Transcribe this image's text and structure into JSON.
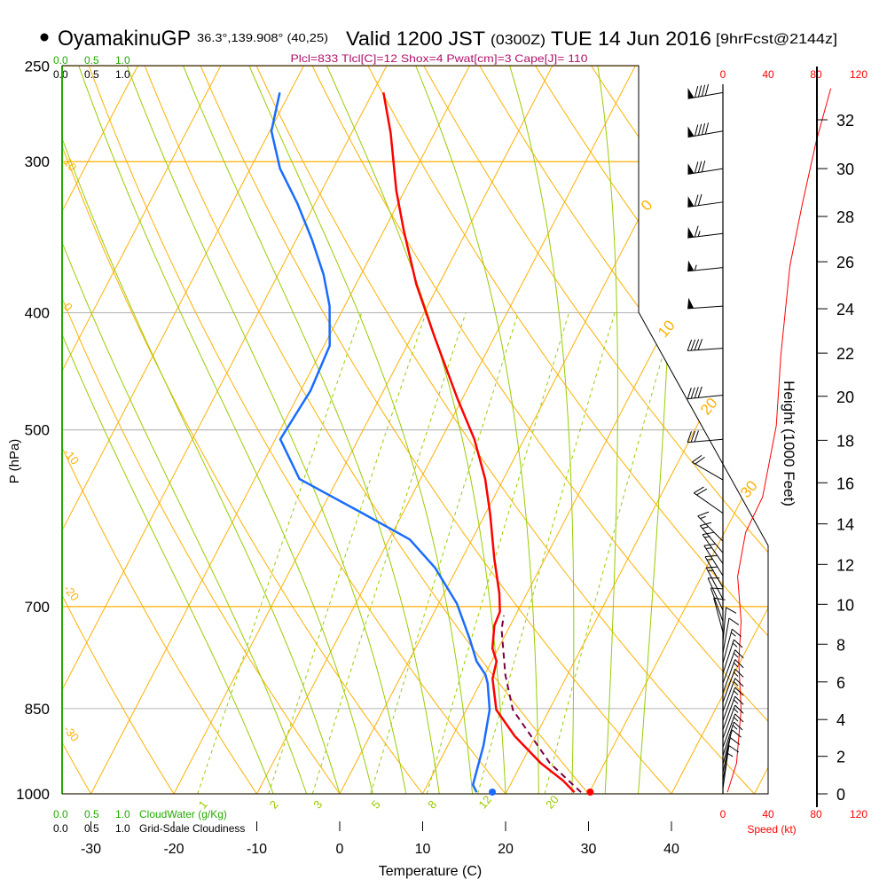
{
  "header": {
    "station": "OyamakinuGP",
    "coords": "36.3°,139.908° (40,25)",
    "valid": "Valid 1200 JST",
    "utc": "(0300Z)",
    "date": "TUE 14 Jun 2016",
    "forecast": "[9hrFcst@2144z]",
    "indices": "Plcl=833 Tlcl[C]=12 Shox=4 Pwat[cm]=3 Cape[J]= 110"
  },
  "cloud_axis": {
    "ticks": [
      "0.0",
      "0.5",
      "1.0"
    ],
    "cloudwater_label": "CloudWater (g/Kg)",
    "cloudiness_label": "Grid-Scale Cloudiness"
  },
  "speed_axis": {
    "ticks": [
      "0",
      "40",
      "80",
      "120"
    ],
    "label": "Speed (kt)"
  },
  "colors": {
    "temperature": "#ff0000",
    "dewpoint": "#1a6cff",
    "parcel": "#7a0040",
    "isotherm": "#ffb000",
    "moist_adiabat": "#99cc00",
    "mixing_ratio": "#99cc00",
    "indices": "#b0106a"
  },
  "chart_data": {
    "type": "line",
    "title": "Skew-T sounding",
    "xlabel": "Temperature (C)",
    "ylabel": "P (hPa)",
    "y2label": "Height (1000 Feet)",
    "x_ticks": [
      -30,
      -20,
      -10,
      0,
      10,
      20,
      30,
      40
    ],
    "pressure_ticks": [
      250,
      300,
      400,
      500,
      700,
      850,
      1000
    ],
    "height_ticks": [
      {
        "kft": 0,
        "p": 1000
      },
      {
        "kft": 2,
        "p": 931
      },
      {
        "kft": 4,
        "p": 868
      },
      {
        "kft": 6,
        "p": 808
      },
      {
        "kft": 8,
        "p": 752
      },
      {
        "kft": 10,
        "p": 697
      },
      {
        "kft": 12,
        "p": 646
      },
      {
        "kft": 14,
        "p": 598
      },
      {
        "kft": 16,
        "p": 553
      },
      {
        "kft": 18,
        "p": 510
      },
      {
        "kft": 20,
        "p": 469
      },
      {
        "kft": 22,
        "p": 432
      },
      {
        "kft": 24,
        "p": 397
      },
      {
        "kft": 26,
        "p": 363
      },
      {
        "kft": 28,
        "p": 333
      },
      {
        "kft": 30,
        "p": 304
      },
      {
        "kft": 32,
        "p": 277
      }
    ],
    "isotherm_labels": [
      {
        "t": 0,
        "p": 330
      },
      {
        "t": 10,
        "p": 420
      },
      {
        "t": 20,
        "p": 487
      },
      {
        "t": 30,
        "p": 570
      }
    ],
    "dry_adiabat_labels": [
      {
        "text": "10",
        "p": 299
      },
      {
        "text": "0",
        "p": 394
      },
      {
        "text": "-10",
        "p": 520
      },
      {
        "text": "-20",
        "p": 674
      },
      {
        "text": "-30",
        "p": 881
      }
    ],
    "mixing_ratio_labels": [
      "1",
      "2",
      "3",
      "5",
      "8",
      "12",
      "20"
    ],
    "temperature": [
      {
        "p": 263,
        "t": -38.7
      },
      {
        "p": 284,
        "t": -35.3
      },
      {
        "p": 317,
        "t": -31.0
      },
      {
        "p": 342,
        "t": -27.6
      },
      {
        "p": 379,
        "t": -22.7
      },
      {
        "p": 419,
        "t": -17.2
      },
      {
        "p": 471,
        "t": -10.6
      },
      {
        "p": 509,
        "t": -6.0
      },
      {
        "p": 549,
        "t": -2.2
      },
      {
        "p": 587,
        "t": 0.6
      },
      {
        "p": 639,
        "t": 3.9
      },
      {
        "p": 683,
        "t": 6.7
      },
      {
        "p": 707,
        "t": 7.9
      },
      {
        "p": 726,
        "t": 8.1
      },
      {
        "p": 758,
        "t": 9.3
      },
      {
        "p": 777,
        "t": 10.6
      },
      {
        "p": 803,
        "t": 11.2
      },
      {
        "p": 852,
        "t": 13.6
      },
      {
        "p": 896,
        "t": 17.5
      },
      {
        "p": 943,
        "t": 22.3
      },
      {
        "p": 975,
        "t": 26.1
      },
      {
        "p": 997,
        "t": 28.2
      }
    ],
    "dewpoint": [
      {
        "p": 263,
        "t": -51.2
      },
      {
        "p": 283,
        "t": -49.8
      },
      {
        "p": 304,
        "t": -46.4
      },
      {
        "p": 325,
        "t": -42.1
      },
      {
        "p": 348,
        "t": -38.1
      },
      {
        "p": 372,
        "t": -34.5
      },
      {
        "p": 395,
        "t": -31.8
      },
      {
        "p": 426,
        "t": -29.3
      },
      {
        "p": 464,
        "t": -28.8
      },
      {
        "p": 509,
        "t": -29.4
      },
      {
        "p": 549,
        "t": -24.6
      },
      {
        "p": 587,
        "t": -14.6
      },
      {
        "p": 616,
        "t": -7.5
      },
      {
        "p": 650,
        "t": -2.7
      },
      {
        "p": 696,
        "t": 2.2
      },
      {
        "p": 745,
        "t": 6.0
      },
      {
        "p": 777,
        "t": 8.2
      },
      {
        "p": 797,
        "t": 10.1
      },
      {
        "p": 810,
        "t": 10.9
      },
      {
        "p": 852,
        "t": 12.8
      },
      {
        "p": 912,
        "t": 14.3
      },
      {
        "p": 959,
        "t": 15.1
      },
      {
        "p": 983,
        "t": 15.5
      },
      {
        "p": 997,
        "t": 16.4
      }
    ],
    "parcel": [
      {
        "p": 997,
        "t": 29.0
      },
      {
        "p": 943,
        "t": 23.4
      },
      {
        "p": 852,
        "t": 15.6
      },
      {
        "p": 797,
        "t": 12.5
      },
      {
        "p": 731,
        "t": 9.2
      },
      {
        "p": 712,
        "t": 8.6
      }
    ],
    "surface": {
      "p": 1000,
      "t": 30.2,
      "td": 18.4
    },
    "wind_speed": [
      {
        "p": 997,
        "spd": 4
      },
      {
        "p": 943,
        "spd": 12
      },
      {
        "p": 852,
        "spd": 16
      },
      {
        "p": 777,
        "spd": 14
      },
      {
        "p": 720,
        "spd": 16
      },
      {
        "p": 661,
        "spd": 13
      },
      {
        "p": 608,
        "spd": 20
      },
      {
        "p": 568,
        "spd": 35
      },
      {
        "p": 496,
        "spd": 47
      },
      {
        "p": 434,
        "spd": 51
      },
      {
        "p": 366,
        "spd": 59
      },
      {
        "p": 325,
        "spd": 70
      },
      {
        "p": 289,
        "spd": 82
      },
      {
        "p": 261,
        "spd": 95
      }
    ],
    "wind_barbs": [
      {
        "p": 263,
        "dir": 260,
        "spd": 90
      },
      {
        "p": 283,
        "dir": 260,
        "spd": 90
      },
      {
        "p": 304,
        "dir": 261,
        "spd": 80
      },
      {
        "p": 324,
        "dir": 262,
        "spd": 70
      },
      {
        "p": 344,
        "dir": 263,
        "spd": 65
      },
      {
        "p": 367,
        "dir": 264,
        "spd": 55
      },
      {
        "p": 395,
        "dir": 266,
        "spd": 50
      },
      {
        "p": 428,
        "dir": 266,
        "spd": 40
      },
      {
        "p": 468,
        "dir": 264,
        "spd": 40
      },
      {
        "p": 509,
        "dir": 265,
        "spd": 30
      },
      {
        "p": 550,
        "dir": 300,
        "spd": 20
      },
      {
        "p": 586,
        "dir": 305,
        "spd": 20
      },
      {
        "p": 618,
        "dir": 315,
        "spd": 15
      },
      {
        "p": 632,
        "dir": 320,
        "spd": 15
      },
      {
        "p": 645,
        "dir": 325,
        "spd": 15
      },
      {
        "p": 660,
        "dir": 328,
        "spd": 15
      },
      {
        "p": 675,
        "dir": 330,
        "spd": 15
      },
      {
        "p": 690,
        "dir": 332,
        "spd": 15
      },
      {
        "p": 705,
        "dir": 335,
        "spd": 10
      },
      {
        "p": 720,
        "dir": 340,
        "spd": 10
      },
      {
        "p": 735,
        "dir": 345,
        "spd": 10
      },
      {
        "p": 750,
        "dir": 5,
        "spd": 10
      },
      {
        "p": 765,
        "dir": 10,
        "spd": 10
      },
      {
        "p": 780,
        "dir": 15,
        "spd": 15
      },
      {
        "p": 795,
        "dir": 18,
        "spd": 15
      },
      {
        "p": 810,
        "dir": 20,
        "spd": 15
      },
      {
        "p": 825,
        "dir": 20,
        "spd": 15
      },
      {
        "p": 840,
        "dir": 20,
        "spd": 15
      },
      {
        "p": 855,
        "dir": 20,
        "spd": 15
      },
      {
        "p": 870,
        "dir": 20,
        "spd": 15
      },
      {
        "p": 885,
        "dir": 20,
        "spd": 15
      },
      {
        "p": 900,
        "dir": 20,
        "spd": 15
      },
      {
        "p": 915,
        "dir": 20,
        "spd": 15
      },
      {
        "p": 930,
        "dir": 18,
        "spd": 15
      },
      {
        "p": 945,
        "dir": 15,
        "spd": 10
      },
      {
        "p": 960,
        "dir": 12,
        "spd": 10
      },
      {
        "p": 975,
        "dir": 10,
        "spd": 10
      },
      {
        "p": 990,
        "dir": 8,
        "spd": 5
      }
    ]
  }
}
